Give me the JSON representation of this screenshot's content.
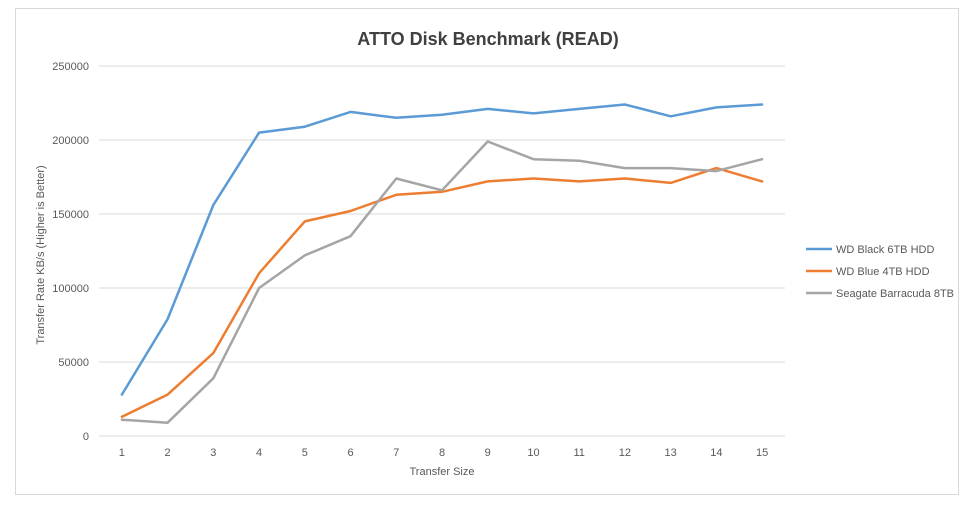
{
  "chart_data": {
    "type": "line",
    "title": "ATTO Disk Benchmark (READ)",
    "xlabel": "Transfer Size",
    "ylabel": "Transfer Rate KB/s (Higher is Better)",
    "categories": [
      "1",
      "2",
      "3",
      "4",
      "5",
      "6",
      "7",
      "8",
      "9",
      "10",
      "11",
      "12",
      "13",
      "14",
      "15"
    ],
    "ylim": [
      0,
      250000
    ],
    "yticks": [
      0,
      50000,
      100000,
      150000,
      200000,
      250000
    ],
    "grid": true,
    "legend_position": "right",
    "series": [
      {
        "name": "WD Black 6TB HDD",
        "color": "#5b9bd5",
        "values": [
          28000,
          79000,
          156000,
          205000,
          209000,
          219000,
          215000,
          217000,
          221000,
          218000,
          221000,
          224000,
          216000,
          222000,
          224000
        ]
      },
      {
        "name": "WD Blue 4TB HDD",
        "color": "#ed7d31",
        "values": [
          13000,
          28000,
          56000,
          110000,
          145000,
          152000,
          163000,
          165000,
          172000,
          174000,
          172000,
          174000,
          171000,
          181000,
          172000
        ]
      },
      {
        "name": "Seagate Barracuda 8TB",
        "color": "#a5a5a5",
        "values": [
          11000,
          9000,
          39000,
          100000,
          122000,
          135000,
          174000,
          166000,
          199000,
          187000,
          186000,
          181000,
          181000,
          179000,
          187000
        ]
      }
    ]
  }
}
